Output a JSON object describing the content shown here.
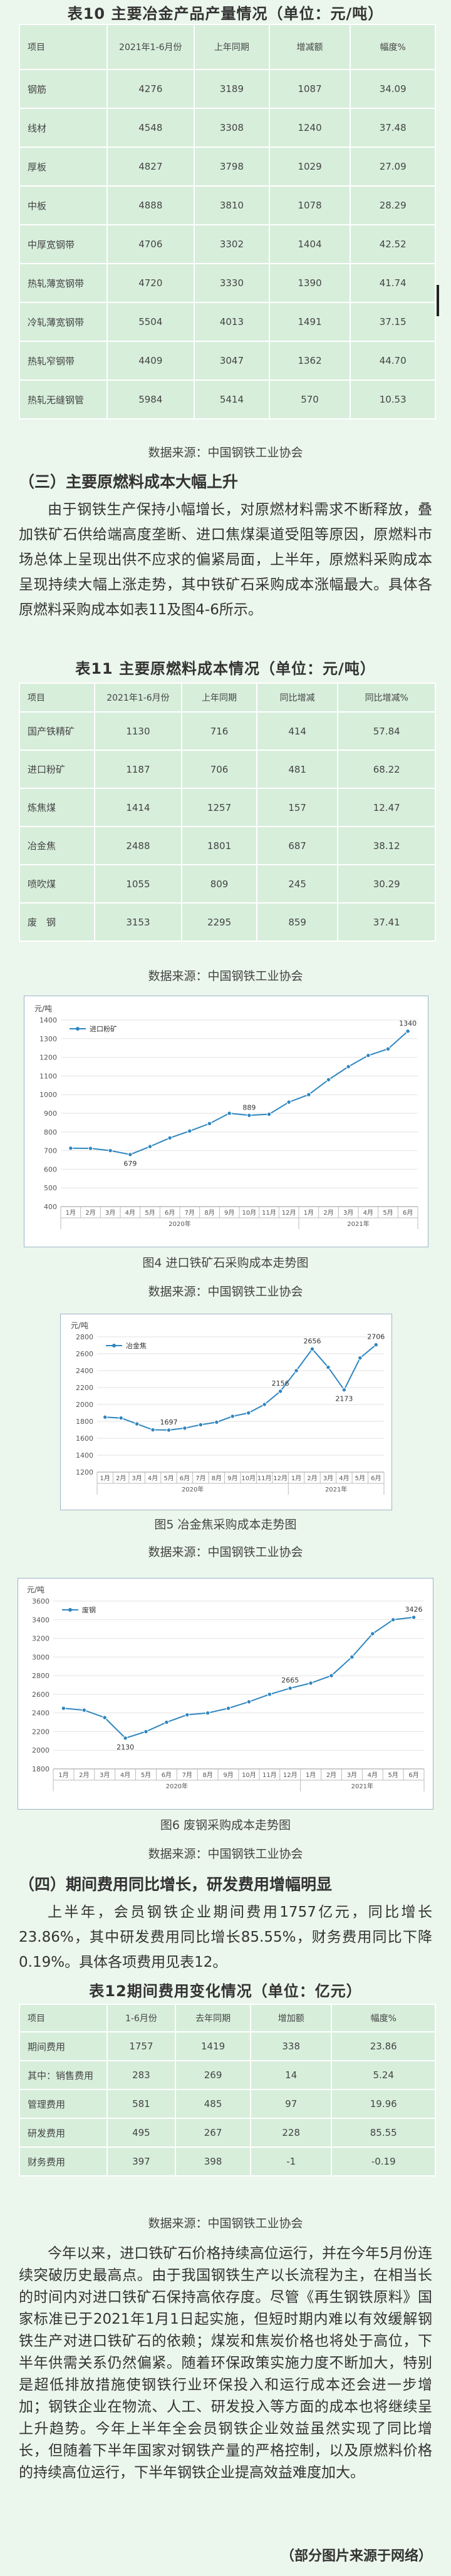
{
  "table10": {
    "title": "表10 主要冶金产品产量情况（单位：元/吨）",
    "headers": [
      "项目",
      "2021年1-6月份",
      "上年同期",
      "增减额",
      "幅度%"
    ],
    "rows": [
      [
        "钢筋",
        "4276",
        "3189",
        "1087",
        "34.09"
      ],
      [
        "线材",
        "4548",
        "3308",
        "1240",
        "37.48"
      ],
      [
        "厚板",
        "4827",
        "3798",
        "1029",
        "27.09"
      ],
      [
        "中板",
        "4888",
        "3810",
        "1078",
        "28.29"
      ],
      [
        "中厚宽钢带",
        "4706",
        "3302",
        "1404",
        "42.52"
      ],
      [
        "热轧薄宽钢带",
        "4720",
        "3330",
        "1390",
        "41.74"
      ],
      [
        "冷轧薄宽钢带",
        "5504",
        "4013",
        "1491",
        "37.15"
      ],
      [
        "热轧窄钢带",
        "4409",
        "3047",
        "1362",
        "44.70"
      ],
      [
        "热轧无缝钢管",
        "5984",
        "5414",
        "570",
        "10.53"
      ]
    ],
    "source": "数据来源：中国钢铁工业协会"
  },
  "section3": {
    "heading": "（三）主要原燃料成本大幅上升",
    "paragraph": "由于钢铁生产保持小幅增长，对原燃材料需求不断释放，叠加铁矿石供给端高度垄断、进口焦煤渠道受阻等原因，原燃料市场总体上呈现出供不应求的偏紧局面，上半年，原燃料采购成本呈现持续大幅上涨走势，其中铁矿石采购成本涨幅最大。具体各原燃料采购成本如表11及图4-6所示。"
  },
  "table11": {
    "title": "表11 主要原燃料成本情况（单位：元/吨）",
    "headers": [
      "项目",
      "2021年1-6月份",
      "上年同期",
      "同比增减",
      "同比增减%"
    ],
    "rows": [
      [
        "国产铁精矿",
        "1130",
        "716",
        "414",
        "57.84"
      ],
      [
        "进口粉矿",
        "1187",
        "706",
        "481",
        "68.22"
      ],
      [
        "炼焦煤",
        "1414",
        "1257",
        "157",
        "12.47"
      ],
      [
        "冶金焦",
        "2488",
        "1801",
        "687",
        "38.12"
      ],
      [
        "喷吹煤",
        "1055",
        "809",
        "245",
        "30.29"
      ],
      [
        "废　钢",
        "3153",
        "2295",
        "859",
        "37.41"
      ]
    ],
    "source": "数据来源：中国钢铁工业协会"
  },
  "chart_data": [
    {
      "type": "line",
      "ylabel": "元/吨",
      "series": [
        {
          "name": "进口粉矿",
          "values": [
            713,
            712,
            700,
            679,
            722,
            768,
            805,
            845,
            900,
            889,
            895,
            960,
            1000,
            1080,
            1150,
            1210,
            1245,
            1340
          ]
        }
      ],
      "categories": [
        "1月",
        "2月",
        "3月",
        "4月",
        "5月",
        "6月",
        "7月",
        "8月",
        "9月",
        "10月",
        "11月",
        "12月",
        "1月",
        "2月",
        "3月",
        "4月",
        "5月",
        "6月"
      ],
      "groups": [
        "2020年",
        "2021年"
      ],
      "labels": [
        {
          "index": 3,
          "text": "679"
        },
        {
          "index": 9,
          "text": "889"
        },
        {
          "index": 17,
          "text": "1340"
        }
      ],
      "yticks": [
        400,
        500,
        600,
        700,
        800,
        900,
        1000,
        1100,
        1200,
        1300,
        1400
      ],
      "ylim": [
        400,
        1400
      ],
      "caption": "图4 进口铁矿石采购成本走势图",
      "source": "数据来源：中国钢铁工业协会"
    },
    {
      "type": "line",
      "ylabel": "元/吨",
      "series": [
        {
          "name": "冶金焦",
          "values": [
            1850,
            1840,
            1770,
            1700,
            1697,
            1720,
            1760,
            1790,
            1860,
            1900,
            2000,
            2156,
            2400,
            2656,
            2440,
            2173,
            2550,
            2706
          ]
        }
      ],
      "categories": [
        "1月",
        "2月",
        "3月",
        "4月",
        "5月",
        "6月",
        "7月",
        "8月",
        "9月",
        "10月",
        "11月",
        "12月",
        "1月",
        "2月",
        "3月",
        "4月",
        "5月",
        "6月"
      ],
      "groups": [
        "2020年",
        "2021年"
      ],
      "labels": [
        {
          "index": 4,
          "text": "1697"
        },
        {
          "index": 11,
          "text": "2156"
        },
        {
          "index": 13,
          "text": "2656"
        },
        {
          "index": 15,
          "text": "2173"
        },
        {
          "index": 17,
          "text": "2706"
        }
      ],
      "yticks": [
        1200,
        1400,
        1600,
        1800,
        2000,
        2200,
        2400,
        2600,
        2800
      ],
      "ylim": [
        1200,
        2800
      ],
      "caption": "图5 冶金焦采购成本走势图",
      "source": "数据来源：中国钢铁工业协会"
    },
    {
      "type": "line",
      "ylabel": "元/吨",
      "series": [
        {
          "name": "废钢",
          "values": [
            2450,
            2430,
            2350,
            2130,
            2200,
            2300,
            2380,
            2400,
            2450,
            2520,
            2600,
            2665,
            2720,
            2800,
            3000,
            3250,
            3400,
            3426
          ]
        }
      ],
      "categories": [
        "1月",
        "2月",
        "3月",
        "4月",
        "5月",
        "6月",
        "7月",
        "8月",
        "9月",
        "10月",
        "11月",
        "12月",
        "1月",
        "2月",
        "3月",
        "4月",
        "5月",
        "6月"
      ],
      "groups": [
        "2020年",
        "2021年"
      ],
      "labels": [
        {
          "index": 3,
          "text": "2130"
        },
        {
          "index": 11,
          "text": "2665"
        },
        {
          "index": 17,
          "text": "3426"
        }
      ],
      "yticks": [
        1800,
        2000,
        2200,
        2400,
        2600,
        2800,
        3000,
        3200,
        3400,
        3600
      ],
      "ylim": [
        1800,
        3600
      ],
      "caption": "图6 废钢采购成本走势图",
      "source": "数据来源：中国钢铁工业协会"
    }
  ],
  "section4": {
    "heading": "（四）期间费用同比增长，研发费用增幅明显",
    "paragraph": "上半年，会员钢铁企业期间费用1757亿元，同比增长23.86%，其中研发费用同比增长85.55%，财务费用同比下降0.19%。具体各项费用见表12。"
  },
  "table12": {
    "title": "表12期间费用变化情况（单位：亿元）",
    "headers": [
      "项目",
      "1-6月份",
      "去年同期",
      "增加额",
      "幅度%"
    ],
    "rows": [
      [
        "期间费用",
        "1757",
        "1419",
        "338",
        "23.86"
      ],
      [
        "其中：销售费用",
        "283",
        "269",
        "14",
        "5.24"
      ],
      [
        "管理费用",
        "581",
        "485",
        "97",
        "19.96"
      ],
      [
        "研发费用",
        "495",
        "267",
        "228",
        "85.55"
      ],
      [
        "财务费用",
        "397",
        "398",
        "-1",
        "-0.19"
      ]
    ],
    "source": "数据来源：中国钢铁工业协会"
  },
  "closing": {
    "paragraph": "今年以来，进口铁矿石价格持续高位运行，并在今年5月份连续突破历史最高点。由于我国钢铁生产以长流程为主，在相当长的时间内对进口铁矿石保持高依存度。尽管《再生钢铁原料》国家标准已于2021年1月1日起实施，但短时期内难以有效缓解钢铁生产对进口铁矿石的依赖；煤炭和焦炭价格也将处于高位，下半年供需关系仍然偏紧。随着环保政策实施力度不断加大，特别是超低排放措施使钢铁行业环保投入和运行成本还会进一步增加；钢铁企业在物流、人工、研发投入等方面的成本也将继续呈上升趋势。今年上半年全会员钢铁企业效益虽然实现了同比增长，但随着下半年国家对钢铁产量的严格控制，以及原燃料价格的持续高位运行，下半年钢铁企业提高效益难度加大。",
    "credit": "（部分图片来源于网络）"
  }
}
